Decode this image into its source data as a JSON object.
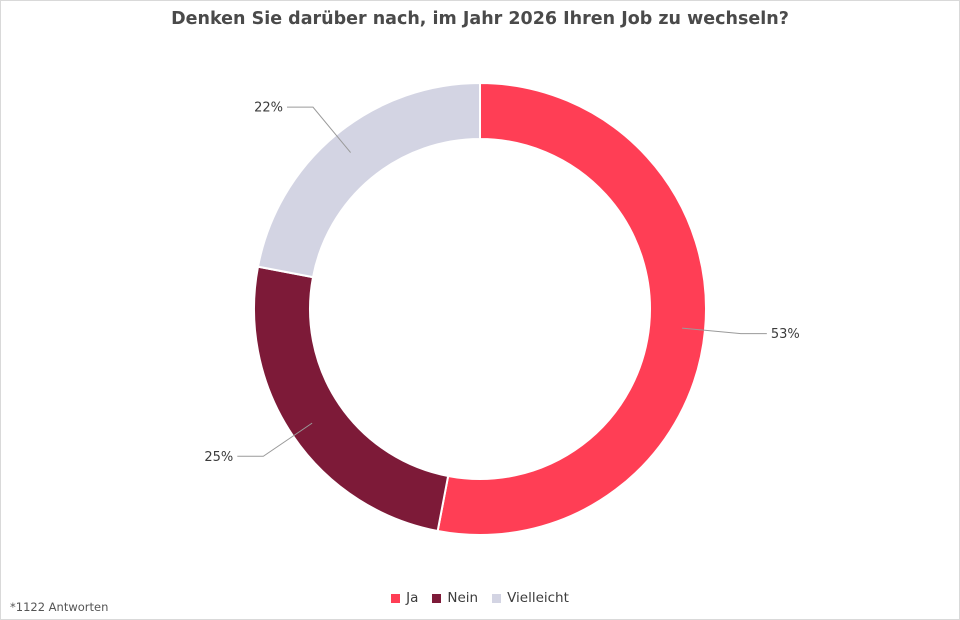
{
  "chart_data": {
    "type": "pie",
    "variant": "donut",
    "title": "Denken Sie darüber nach, im Jahr 2026 Ihren Job zu wechseln?",
    "categories": [
      "Ja",
      "Nein",
      "Vielleicht"
    ],
    "values": [
      53,
      25,
      22
    ],
    "labels": [
      "53%",
      "25%",
      "22%"
    ],
    "colors": [
      "#ff3e55",
      "#7d1a38",
      "#d3d4e3"
    ],
    "legend_position": "bottom",
    "footnote": "*1122 Antworten"
  }
}
